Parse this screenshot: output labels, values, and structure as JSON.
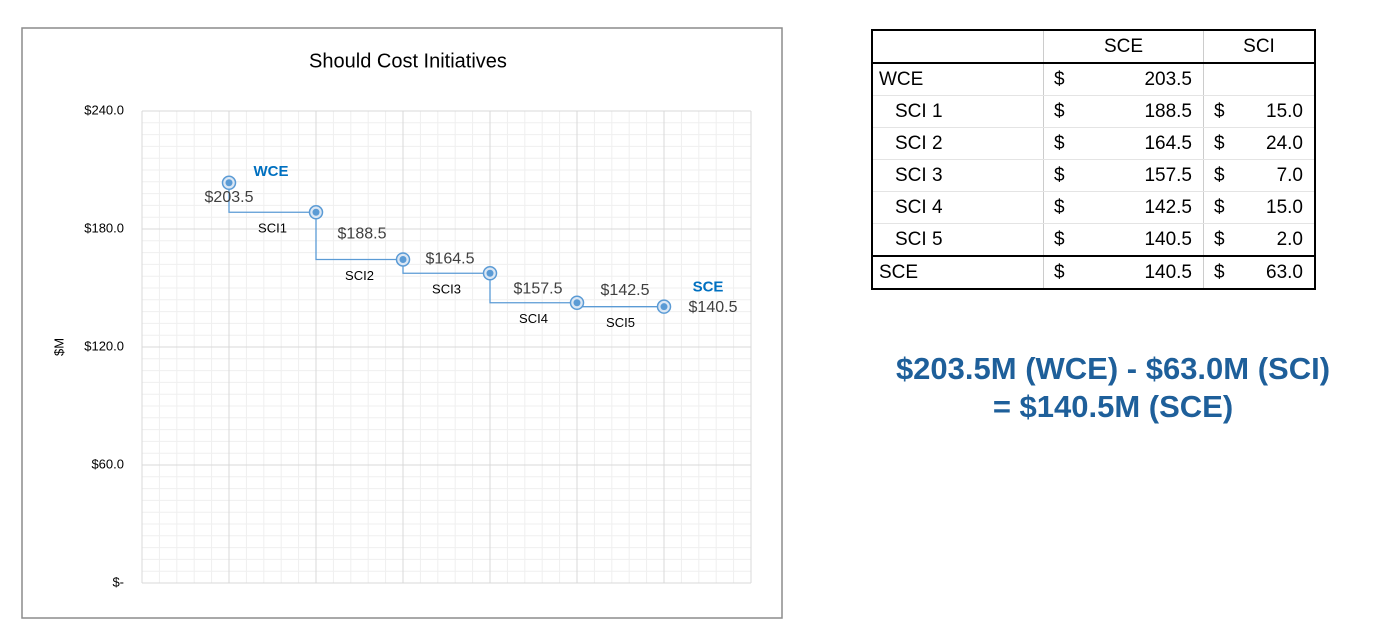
{
  "chart_data": {
    "type": "step",
    "title": "Should Cost Initiatives",
    "y_label": "$M",
    "x": [
      1,
      2,
      3,
      4,
      5,
      6
    ],
    "xlim": [
      0,
      7
    ],
    "ylim": [
      0,
      240
    ],
    "yticks": [
      {
        "value": 0,
        "label": "$-"
      },
      {
        "value": 60,
        "label": "$60.0"
      },
      {
        "value": 120,
        "label": "$120.0"
      },
      {
        "value": 180,
        "label": "$180.0"
      },
      {
        "value": 240,
        "label": "$240.0"
      }
    ],
    "grid": true,
    "series": [
      {
        "color": "#5b9bd5",
        "values": [
          203.5,
          188.5,
          164.5,
          157.5,
          142.5,
          140.5
        ],
        "value_labels": [
          "$203.5",
          "$188.5",
          "$164.5",
          "$157.5",
          "$142.5",
          "$140.5"
        ],
        "point_labels": [
          "WCE",
          null,
          null,
          null,
          null,
          "SCE"
        ],
        "point_label_color": "#0070c0",
        "step_labels": [
          "SCI1",
          "SCI2",
          "SCI3",
          "SCI4",
          "SCI5"
        ]
      }
    ]
  },
  "table": {
    "columns": [
      "SCE",
      "SCI"
    ],
    "currency": "$",
    "rows": [
      {
        "label": "WCE",
        "sce": "203.5",
        "sci": null
      },
      {
        "label": "SCI 1",
        "sce": "188.5",
        "sci": "15.0"
      },
      {
        "label": "SCI 2",
        "sce": "164.5",
        "sci": "24.0"
      },
      {
        "label": "SCI 3",
        "sce": "157.5",
        "sci": "7.0"
      },
      {
        "label": "SCI 4",
        "sce": "142.5",
        "sci": "15.0"
      },
      {
        "label": "SCI 5",
        "sce": "140.5",
        "sci": "2.0"
      },
      {
        "label": "SCE",
        "sce": "140.5",
        "sci": "63.0"
      }
    ]
  },
  "formula": [
    "$203.5M (WCE) - $63.0M (SCI)",
    "= $140.5M (SCE)"
  ]
}
